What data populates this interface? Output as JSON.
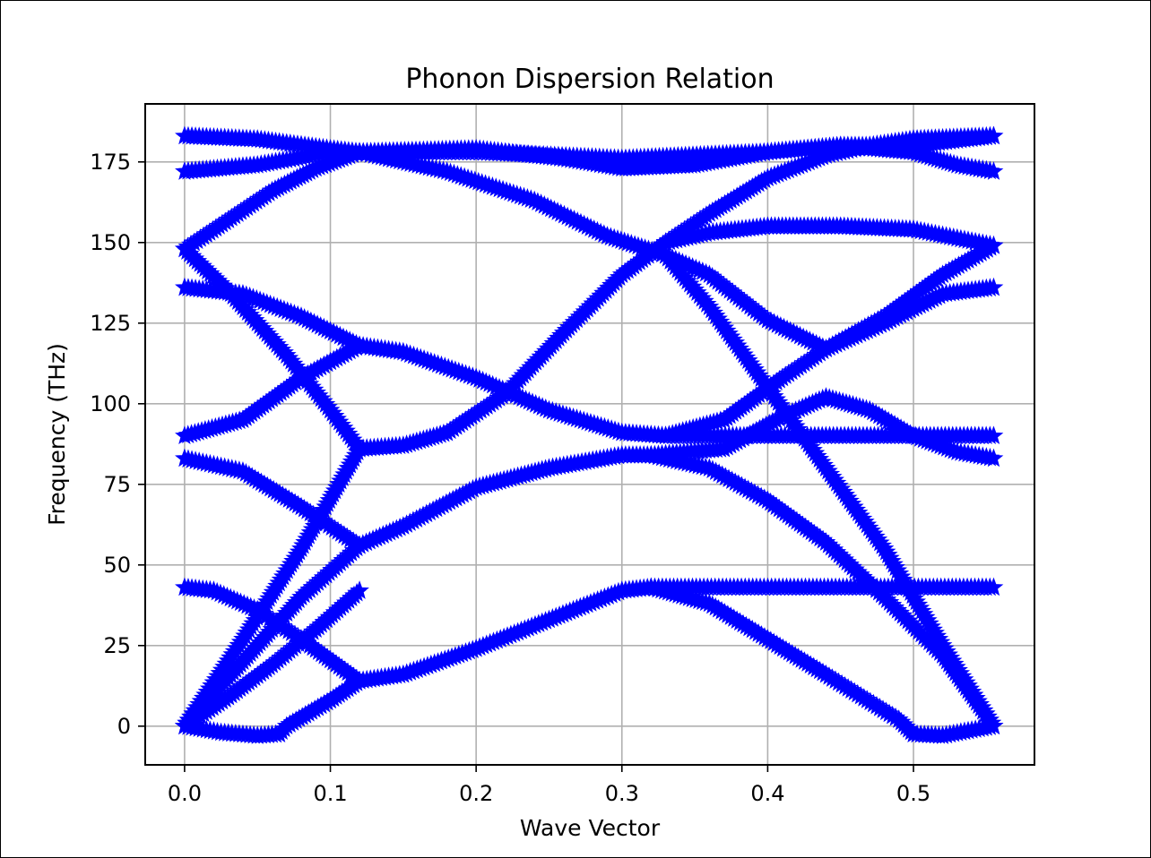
{
  "chart_data": {
    "type": "scatter",
    "title": "Phonon Dispersion Relation",
    "xlabel": "Wave Vector",
    "ylabel": "Frequency (THz)",
    "xlim": [
      -0.027,
      0.583
    ],
    "ylim": [
      -12,
      193
    ],
    "xticks": [
      0.0,
      0.1,
      0.2,
      0.3,
      0.4,
      0.5
    ],
    "xtick_labels": [
      "0.0",
      "0.1",
      "0.2",
      "0.3",
      "0.4",
      "0.5"
    ],
    "yticks": [
      0,
      25,
      50,
      75,
      100,
      125,
      150,
      175
    ],
    "ytick_labels": [
      "0",
      "25",
      "50",
      "75",
      "100",
      "125",
      "150",
      "175"
    ],
    "grid": true,
    "marker": "star",
    "color": "#0000ff",
    "segments": [
      [
        [
          0.0,
          43.0
        ],
        [
          0.02,
          42.0
        ],
        [
          0.05,
          36.0
        ],
        [
          0.08,
          27.0
        ],
        [
          0.12,
          14.0
        ]
      ],
      [
        [
          0.0,
          0.0
        ],
        [
          0.03,
          9.0
        ],
        [
          0.06,
          19.0
        ],
        [
          0.09,
          30.0
        ],
        [
          0.12,
          42.0
        ]
      ],
      [
        [
          0.0,
          0.0
        ],
        [
          0.025,
          -2.0
        ],
        [
          0.05,
          -3.0
        ],
        [
          0.065,
          -2.5
        ],
        [
          0.07,
          0.0
        ],
        [
          0.1,
          8.0
        ],
        [
          0.12,
          14.0
        ]
      ],
      [
        [
          0.0,
          83.0
        ],
        [
          0.04,
          79.0
        ],
        [
          0.08,
          68.0
        ],
        [
          0.12,
          56.0
        ]
      ],
      [
        [
          0.0,
          0.0
        ],
        [
          0.04,
          20.0
        ],
        [
          0.08,
          40.0
        ],
        [
          0.12,
          56.0
        ]
      ],
      [
        [
          0.0,
          90.0
        ],
        [
          0.04,
          95.0
        ],
        [
          0.08,
          108.0
        ],
        [
          0.12,
          118.0
        ]
      ],
      [
        [
          0.0,
          136.0
        ],
        [
          0.04,
          134.0
        ],
        [
          0.08,
          127.0
        ],
        [
          0.12,
          118.0
        ]
      ],
      [
        [
          0.0,
          148.0
        ],
        [
          0.03,
          135.0
        ],
        [
          0.07,
          115.0
        ],
        [
          0.1,
          98.0
        ],
        [
          0.12,
          86.0
        ]
      ],
      [
        [
          0.0,
          0.0
        ],
        [
          0.04,
          27.0
        ],
        [
          0.08,
          55.0
        ],
        [
          0.12,
          86.0
        ]
      ],
      [
        [
          0.0,
          148.0
        ],
        [
          0.03,
          157.0
        ],
        [
          0.06,
          166.0
        ],
        [
          0.09,
          173.0
        ],
        [
          0.12,
          178.0
        ]
      ],
      [
        [
          0.0,
          183.0
        ],
        [
          0.05,
          182.0
        ],
        [
          0.1,
          179.0
        ],
        [
          0.12,
          178.0
        ]
      ],
      [
        [
          0.0,
          172.0
        ],
        [
          0.05,
          174.0
        ],
        [
          0.1,
          178.0
        ],
        [
          0.12,
          178.0
        ]
      ],
      [
        [
          0.12,
          14.0
        ],
        [
          0.15,
          16.0
        ],
        [
          0.2,
          24.0
        ],
        [
          0.25,
          33.0
        ],
        [
          0.3,
          42.0
        ],
        [
          0.32,
          43.0
        ]
      ],
      [
        [
          0.32,
          43.0
        ],
        [
          0.555,
          43.0
        ]
      ],
      [
        [
          0.32,
          43.0
        ],
        [
          0.36,
          38.0
        ],
        [
          0.4,
          27.0
        ],
        [
          0.44,
          16.0
        ],
        [
          0.49,
          2.0
        ],
        [
          0.5,
          -2.5
        ],
        [
          0.52,
          -3.0
        ],
        [
          0.555,
          0.0
        ]
      ],
      [
        [
          0.12,
          56.0
        ],
        [
          0.15,
          62.0
        ],
        [
          0.2,
          74.0
        ],
        [
          0.25,
          80.0
        ],
        [
          0.3,
          84.0
        ],
        [
          0.32,
          84.0
        ]
      ],
      [
        [
          0.32,
          84.0
        ],
        [
          0.36,
          80.0
        ],
        [
          0.4,
          70.0
        ],
        [
          0.44,
          57.0
        ],
        [
          0.48,
          40.0
        ],
        [
          0.52,
          22.0
        ],
        [
          0.555,
          0.0
        ]
      ],
      [
        [
          0.32,
          84.0
        ],
        [
          0.37,
          86.0
        ],
        [
          0.41,
          96.0
        ],
        [
          0.44,
          102.0
        ],
        [
          0.47,
          98.0
        ],
        [
          0.5,
          90.0
        ],
        [
          0.53,
          85.0
        ],
        [
          0.555,
          83.0
        ]
      ],
      [
        [
          0.12,
          118.0
        ],
        [
          0.15,
          116.0
        ],
        [
          0.2,
          108.0
        ],
        [
          0.25,
          98.0
        ],
        [
          0.3,
          91.0
        ],
        [
          0.33,
          90.0
        ]
      ],
      [
        [
          0.33,
          90.0
        ],
        [
          0.555,
          90.0
        ]
      ],
      [
        [
          0.33,
          90.0
        ],
        [
          0.37,
          95.0
        ],
        [
          0.41,
          108.0
        ],
        [
          0.44,
          117.0
        ],
        [
          0.48,
          125.0
        ],
        [
          0.52,
          134.0
        ],
        [
          0.555,
          136.0
        ]
      ],
      [
        [
          0.12,
          86.0
        ],
        [
          0.15,
          87.0
        ],
        [
          0.18,
          91.0
        ],
        [
          0.22,
          103.0
        ],
        [
          0.26,
          122.0
        ],
        [
          0.3,
          140.0
        ],
        [
          0.33,
          150.0
        ]
      ],
      [
        [
          0.33,
          150.0
        ],
        [
          0.36,
          153.0
        ],
        [
          0.4,
          155.0
        ],
        [
          0.45,
          155.0
        ],
        [
          0.5,
          154.0
        ],
        [
          0.555,
          149.0
        ]
      ],
      [
        [
          0.33,
          150.0
        ],
        [
          0.36,
          159.0
        ],
        [
          0.4,
          170.0
        ],
        [
          0.44,
          177.0
        ],
        [
          0.47,
          180.0
        ],
        [
          0.5,
          182.0
        ],
        [
          0.555,
          183.0
        ]
      ],
      [
        [
          0.12,
          178.0
        ],
        [
          0.18,
          172.0
        ],
        [
          0.24,
          163.0
        ],
        [
          0.29,
          152.0
        ],
        [
          0.33,
          146.0
        ],
        [
          0.36,
          140.0
        ],
        [
          0.4,
          126.0
        ],
        [
          0.44,
          117.0
        ],
        [
          0.48,
          127.0
        ],
        [
          0.52,
          140.0
        ],
        [
          0.555,
          149.0
        ]
      ],
      [
        [
          0.33,
          146.0
        ],
        [
          0.36,
          130.0
        ],
        [
          0.4,
          105.0
        ],
        [
          0.44,
          80.0
        ],
        [
          0.48,
          55.0
        ],
        [
          0.52,
          25.0
        ],
        [
          0.555,
          0.0
        ]
      ],
      [
        [
          0.12,
          178.0
        ],
        [
          0.2,
          179.0
        ],
        [
          0.26,
          176.0
        ],
        [
          0.3,
          173.0
        ],
        [
          0.35,
          174.0
        ],
        [
          0.4,
          178.0
        ],
        [
          0.45,
          180.0
        ],
        [
          0.5,
          180.0
        ],
        [
          0.555,
          183.0
        ]
      ],
      [
        [
          0.12,
          178.0
        ],
        [
          0.2,
          178.0
        ],
        [
          0.3,
          176.0
        ],
        [
          0.4,
          178.0
        ],
        [
          0.45,
          180.0
        ],
        [
          0.5,
          178.0
        ],
        [
          0.53,
          174.0
        ],
        [
          0.555,
          172.0
        ]
      ]
    ]
  }
}
